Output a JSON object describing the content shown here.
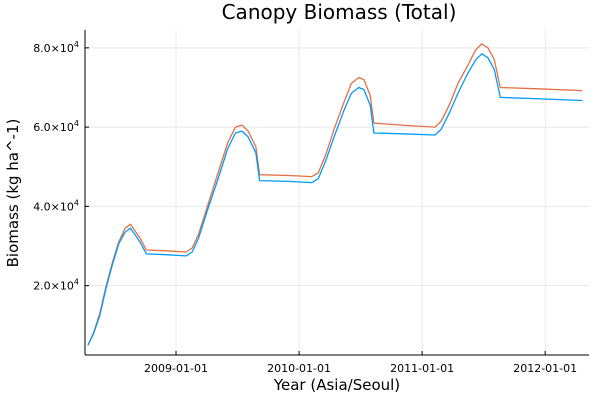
{
  "chart_data": {
    "type": "line",
    "title": "Canopy Biomass (Total)",
    "xlabel": "Year (Asia/Seoul)",
    "ylabel": "Biomass (kg ha^-1)",
    "x_ticks": [
      {
        "date": "2009-01-01",
        "label": "2009-01-01"
      },
      {
        "date": "2010-01-01",
        "label": "2010-01-01"
      },
      {
        "date": "2011-01-01",
        "label": "2011-01-01"
      },
      {
        "date": "2012-01-01",
        "label": "2012-01-01"
      }
    ],
    "y_ticks": [
      {
        "value": 20000,
        "mantissa": "2.0×10",
        "exponent": "4"
      },
      {
        "value": 40000,
        "mantissa": "4.0×10",
        "exponent": "4"
      },
      {
        "value": 60000,
        "mantissa": "6.0×10",
        "exponent": "4"
      },
      {
        "value": 80000,
        "mantissa": "8.0×10",
        "exponent": "4"
      }
    ],
    "xlim": [
      "2008-04-06",
      "2012-05-10"
    ],
    "ylim": [
      2500,
      84500
    ],
    "grid": true,
    "legend": "none",
    "series": [
      {
        "color": "#e26f46",
        "points": [
          [
            "2008-04-15",
            5000
          ],
          [
            "2008-05-01",
            8000
          ],
          [
            "2008-05-20",
            13000
          ],
          [
            "2008-06-08",
            20000
          ],
          [
            "2008-06-27",
            26000
          ],
          [
            "2008-07-15",
            31000
          ],
          [
            "2008-08-03",
            34500
          ],
          [
            "2008-08-19",
            35500
          ],
          [
            "2008-08-31",
            34000
          ],
          [
            "2008-09-16",
            32000
          ],
          [
            "2008-10-05",
            29000
          ],
          [
            "2008-12-01",
            28800
          ],
          [
            "2009-01-31",
            28500
          ],
          [
            "2009-02-18",
            29500
          ],
          [
            "2009-03-09",
            33000
          ],
          [
            "2009-04-04",
            40000
          ],
          [
            "2009-05-04",
            48000
          ],
          [
            "2009-06-03",
            56000
          ],
          [
            "2009-06-26",
            60000
          ],
          [
            "2009-07-15",
            60500
          ],
          [
            "2009-08-03",
            59000
          ],
          [
            "2009-08-26",
            55000
          ],
          [
            "2009-09-06",
            48000
          ],
          [
            "2009-12-01",
            47800
          ],
          [
            "2010-02-08",
            47500
          ],
          [
            "2010-02-27",
            48500
          ],
          [
            "2010-03-21",
            53000
          ],
          [
            "2010-04-17",
            60000
          ],
          [
            "2010-05-13",
            66000
          ],
          [
            "2010-06-05",
            71000
          ],
          [
            "2010-06-27",
            72500
          ],
          [
            "2010-07-12",
            72000
          ],
          [
            "2010-07-31",
            68000
          ],
          [
            "2010-08-11",
            61000
          ],
          [
            "2010-11-01",
            60500
          ],
          [
            "2011-02-08",
            60000
          ],
          [
            "2011-02-27",
            61500
          ],
          [
            "2011-03-25",
            66000
          ],
          [
            "2011-04-17",
            71000
          ],
          [
            "2011-05-13",
            75000
          ],
          [
            "2011-06-09",
            79500
          ],
          [
            "2011-06-27",
            81000
          ],
          [
            "2011-07-15",
            80000
          ],
          [
            "2011-08-03",
            77000
          ],
          [
            "2011-08-21",
            70000
          ],
          [
            "2011-12-01",
            69700
          ],
          [
            "2012-04-20",
            69200
          ]
        ]
      },
      {
        "color": "#009af9",
        "points": [
          [
            "2008-04-15",
            5000
          ],
          [
            "2008-05-01",
            7800
          ],
          [
            "2008-05-20",
            12500
          ],
          [
            "2008-06-08",
            19500
          ],
          [
            "2008-06-27",
            25500
          ],
          [
            "2008-07-15",
            30500
          ],
          [
            "2008-08-03",
            33500
          ],
          [
            "2008-08-19",
            34500
          ],
          [
            "2008-08-31",
            33000
          ],
          [
            "2008-09-16",
            31000
          ],
          [
            "2008-10-05",
            28000
          ],
          [
            "2008-12-01",
            27800
          ],
          [
            "2009-01-31",
            27500
          ],
          [
            "2009-02-18",
            28500
          ],
          [
            "2009-03-09",
            32000
          ],
          [
            "2009-04-04",
            39000
          ],
          [
            "2009-05-04",
            46500
          ],
          [
            "2009-06-03",
            54500
          ],
          [
            "2009-06-26",
            58500
          ],
          [
            "2009-07-15",
            59000
          ],
          [
            "2009-08-03",
            57500
          ],
          [
            "2009-08-26",
            53500
          ],
          [
            "2009-09-06",
            46500
          ],
          [
            "2009-12-01",
            46300
          ],
          [
            "2010-02-08",
            46000
          ],
          [
            "2010-02-27",
            47000
          ],
          [
            "2010-03-21",
            51500
          ],
          [
            "2010-04-17",
            58000
          ],
          [
            "2010-05-13",
            64000
          ],
          [
            "2010-06-05",
            68500
          ],
          [
            "2010-06-27",
            70000
          ],
          [
            "2010-07-12",
            69500
          ],
          [
            "2010-07-31",
            65500
          ],
          [
            "2010-08-11",
            58500
          ],
          [
            "2010-11-01",
            58300
          ],
          [
            "2011-02-08",
            58000
          ],
          [
            "2011-02-27",
            59500
          ],
          [
            "2011-03-25",
            64000
          ],
          [
            "2011-04-17",
            68500
          ],
          [
            "2011-05-13",
            73000
          ],
          [
            "2011-06-09",
            77000
          ],
          [
            "2011-06-27",
            78500
          ],
          [
            "2011-07-15",
            77500
          ],
          [
            "2011-08-03",
            74500
          ],
          [
            "2011-08-21",
            67500
          ],
          [
            "2011-12-01",
            67200
          ],
          [
            "2012-04-20",
            66700
          ]
        ]
      }
    ]
  }
}
